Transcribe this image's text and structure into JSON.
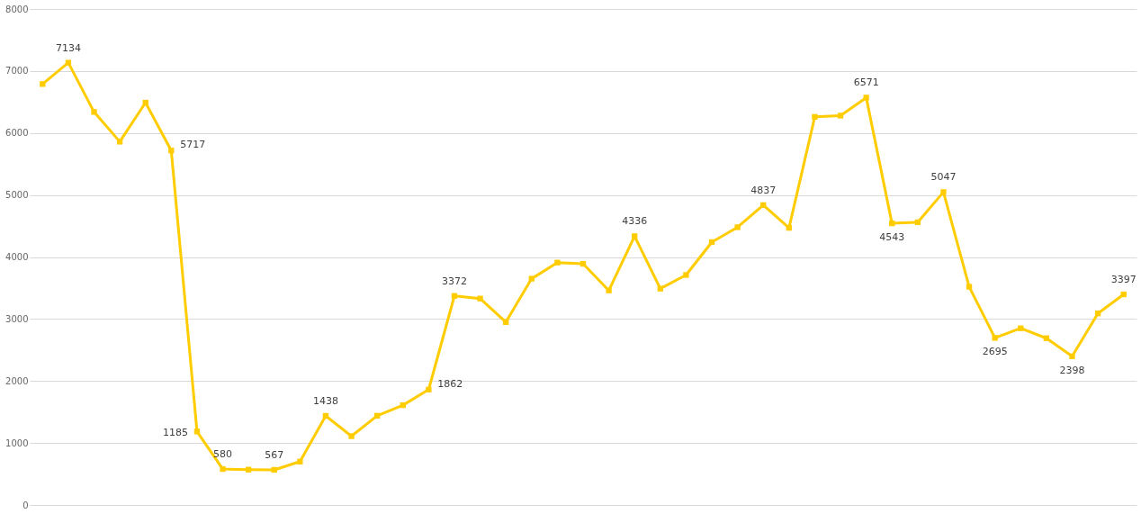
{
  "chart_data": {
    "type": "line",
    "categories": [
      null,
      null,
      null,
      null,
      null,
      null,
      null,
      null,
      null,
      null,
      null,
      null,
      null,
      null,
      null,
      null,
      null,
      null,
      null,
      null,
      null,
      null,
      null,
      null,
      null,
      null,
      null,
      null,
      null,
      null,
      null,
      null,
      null,
      null,
      null,
      null,
      null,
      null,
      null,
      null,
      null,
      null,
      null
    ],
    "series": [
      {
        "color": "#ffcc00",
        "values": [
          6790,
          7134,
          6340,
          5860,
          6490,
          5717,
          1185,
          580,
          570,
          567,
          700,
          1438,
          1110,
          1440,
          1610,
          1862,
          3372,
          3330,
          2950,
          3650,
          3910,
          3890,
          3460,
          4336,
          3490,
          3710,
          4240,
          4480,
          4837,
          4470,
          6260,
          6280,
          6571,
          4543,
          4560,
          5047,
          3520,
          2695,
          2850,
          2690,
          2398,
          3090,
          3397
        ],
        "value_labels": [
          null,
          "7134",
          null,
          null,
          null,
          "5717",
          "1185",
          "580",
          null,
          "567",
          null,
          "1438",
          null,
          null,
          null,
          "1862",
          "3372",
          null,
          null,
          null,
          null,
          null,
          null,
          "4336",
          null,
          null,
          null,
          null,
          "4837",
          null,
          null,
          null,
          "6571",
          "4543",
          null,
          "5047",
          null,
          "2695",
          null,
          null,
          "2398",
          null,
          "3397"
        ]
      }
    ],
    "ylim": [
      0,
      8000
    ],
    "yticks": [
      0,
      1000,
      2000,
      3000,
      4000,
      5000,
      6000,
      7000,
      8000
    ],
    "grid": "y",
    "marker": "square",
    "line_style": "solid",
    "tick_labels": "y"
  }
}
